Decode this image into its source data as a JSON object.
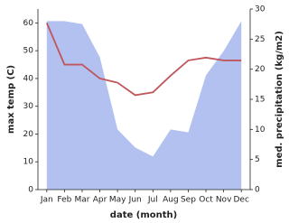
{
  "chart_data": {
    "type": "line-area",
    "x_label": "date (month)",
    "y_label": "max temp (C)",
    "y2_label": "med. precipitation (kg/m2)",
    "categories": [
      "Jan",
      "Feb",
      "Mar",
      "Apr",
      "May",
      "Jun",
      "Jul",
      "Aug",
      "Sep",
      "Oct",
      "Nov",
      "Dec"
    ],
    "series": [
      {
        "name": "max temp",
        "color": "#c0565b",
        "kind": "line",
        "values": [
          60,
          45,
          45,
          40,
          38.5,
          34,
          35,
          41,
          46.5,
          47.5,
          46.5,
          46.5
        ]
      },
      {
        "name": "med. precipitation",
        "color": "#b3c1f0",
        "kind": "area",
        "axis": "y2",
        "values": [
          28,
          28,
          27.5,
          22,
          10,
          7,
          5.5,
          10,
          9.5,
          19,
          23,
          28
        ]
      }
    ],
    "ylim": [
      0,
      65
    ],
    "yticks": [
      0,
      10,
      20,
      30,
      40,
      50,
      60
    ],
    "y2lim": [
      0,
      30
    ],
    "y2ticks": [
      0,
      5,
      10,
      15,
      20,
      25,
      30
    ]
  }
}
